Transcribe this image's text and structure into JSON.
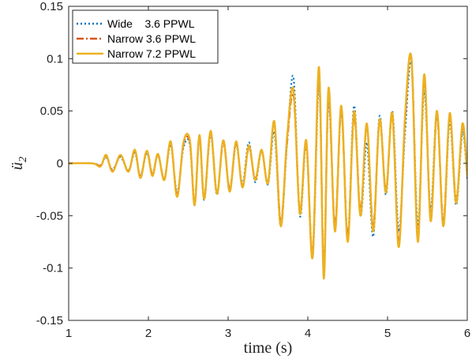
{
  "chart_data": {
    "type": "line",
    "title": "",
    "xlabel": "time (s)",
    "ylabel": "ü₂",
    "ylabel_main": "ü",
    "ylabel_sub": "2",
    "xlim": [
      1,
      6
    ],
    "ylim": [
      -0.15,
      0.15
    ],
    "xticks": [
      1,
      2,
      3,
      4,
      5,
      6
    ],
    "xtick_labels": [
      "1",
      "2",
      "3",
      "4",
      "5",
      "6"
    ],
    "yticks": [
      -0.15,
      -0.1,
      -0.05,
      0,
      0.05,
      0.1,
      0.15
    ],
    "ytick_labels": [
      "-0.15",
      "-0.1",
      "-0.05",
      "0",
      "0.05",
      "0.1",
      "0.15"
    ],
    "grid": false,
    "legend_position": "top-left",
    "series": [
      {
        "name": "Wide    3.6 PPWL",
        "color": "#0072BD",
        "style": "dotted",
        "x": [
          1.0,
          1.3,
          1.4,
          1.47,
          1.55,
          1.65,
          1.75,
          1.83,
          1.9,
          1.98,
          2.05,
          2.12,
          2.2,
          2.28,
          2.36,
          2.44,
          2.52,
          2.58,
          2.64,
          2.7,
          2.78,
          2.86,
          2.94,
          3.02,
          3.1,
          3.18,
          3.26,
          3.34,
          3.42,
          3.5,
          3.58,
          3.66,
          3.74,
          3.82,
          3.9,
          3.98,
          4.06,
          4.14,
          4.2,
          4.26,
          4.34,
          4.42,
          4.5,
          4.58,
          4.66,
          4.74,
          4.82,
          4.9,
          4.98,
          5.06,
          5.14,
          5.22,
          5.3,
          5.38,
          5.46,
          5.54,
          5.62,
          5.7,
          5.78,
          5.86,
          5.94,
          6.0
        ],
        "y": [
          0.0,
          0.0,
          -0.002,
          0.006,
          -0.006,
          0.006,
          -0.007,
          0.01,
          -0.012,
          0.01,
          -0.01,
          0.008,
          -0.015,
          0.018,
          -0.028,
          0.015,
          0.018,
          -0.04,
          0.025,
          -0.035,
          0.028,
          -0.03,
          0.022,
          -0.025,
          0.018,
          -0.02,
          0.02,
          -0.018,
          0.012,
          -0.02,
          0.03,
          -0.06,
          0.02,
          0.082,
          -0.05,
          0.018,
          -0.09,
          0.078,
          -0.1,
          0.06,
          -0.06,
          0.05,
          -0.07,
          0.055,
          -0.05,
          0.02,
          -0.07,
          0.045,
          -0.03,
          0.05,
          -0.065,
          0.03,
          0.095,
          -0.06,
          0.07,
          -0.045,
          0.05,
          -0.06,
          0.04,
          -0.04,
          0.03,
          -0.015
        ]
      },
      {
        "name": "Narrow 3.6 PPWL",
        "color": "#D95319",
        "style": "dashdot",
        "x": [
          1.0,
          1.3,
          1.4,
          1.47,
          1.55,
          1.65,
          1.75,
          1.83,
          1.9,
          1.98,
          2.05,
          2.12,
          2.2,
          2.28,
          2.36,
          2.44,
          2.52,
          2.58,
          2.64,
          2.7,
          2.78,
          2.86,
          2.94,
          3.02,
          3.1,
          3.18,
          3.26,
          3.34,
          3.42,
          3.5,
          3.58,
          3.66,
          3.74,
          3.82,
          3.9,
          3.98,
          4.06,
          4.14,
          4.2,
          4.26,
          4.34,
          4.42,
          4.5,
          4.58,
          4.66,
          4.74,
          4.82,
          4.9,
          4.98,
          5.06,
          5.14,
          5.22,
          5.3,
          5.38,
          5.46,
          5.54,
          5.62,
          5.7,
          5.78,
          5.86,
          5.94,
          6.0
        ],
        "y": [
          0.0,
          0.0,
          -0.002,
          0.007,
          -0.007,
          0.007,
          -0.007,
          0.012,
          -0.013,
          0.012,
          -0.01,
          0.008,
          -0.015,
          0.02,
          -0.03,
          0.018,
          0.02,
          -0.038,
          0.026,
          -0.033,
          0.03,
          -0.028,
          0.02,
          -0.025,
          0.02,
          -0.022,
          0.015,
          -0.015,
          0.012,
          -0.018,
          0.038,
          -0.055,
          0.02,
          0.065,
          -0.045,
          0.02,
          -0.085,
          0.085,
          -0.1,
          0.065,
          -0.06,
          0.05,
          -0.07,
          0.045,
          -0.045,
          0.035,
          -0.06,
          0.04,
          -0.025,
          0.045,
          -0.075,
          0.04,
          0.1,
          -0.07,
          0.08,
          -0.05,
          0.045,
          -0.055,
          0.045,
          -0.035,
          0.035,
          -0.012
        ]
      },
      {
        "name": "Narrow 7.2 PPWL",
        "color": "#EDB120",
        "style": "solid",
        "x": [
          1.0,
          1.3,
          1.4,
          1.47,
          1.55,
          1.65,
          1.75,
          1.83,
          1.9,
          1.98,
          2.05,
          2.12,
          2.2,
          2.28,
          2.36,
          2.44,
          2.52,
          2.58,
          2.64,
          2.7,
          2.78,
          2.86,
          2.94,
          3.02,
          3.1,
          3.18,
          3.26,
          3.34,
          3.42,
          3.5,
          3.58,
          3.66,
          3.74,
          3.82,
          3.9,
          3.98,
          4.06,
          4.14,
          4.2,
          4.26,
          4.34,
          4.42,
          4.5,
          4.58,
          4.66,
          4.74,
          4.82,
          4.9,
          4.98,
          5.06,
          5.14,
          5.22,
          5.3,
          5.38,
          5.46,
          5.54,
          5.62,
          5.7,
          5.78,
          5.86,
          5.94,
          6.0
        ],
        "y": [
          0.0,
          0.0,
          -0.003,
          0.008,
          -0.008,
          0.008,
          -0.008,
          0.013,
          -0.014,
          0.012,
          -0.012,
          0.009,
          -0.016,
          0.021,
          -0.032,
          0.02,
          0.022,
          -0.04,
          0.027,
          -0.034,
          0.031,
          -0.029,
          0.022,
          -0.027,
          0.021,
          -0.023,
          0.017,
          -0.016,
          0.013,
          -0.019,
          0.04,
          -0.06,
          0.025,
          0.07,
          -0.048,
          0.022,
          -0.09,
          0.092,
          -0.11,
          0.072,
          -0.065,
          0.055,
          -0.075,
          0.05,
          -0.05,
          0.038,
          -0.065,
          0.042,
          -0.028,
          0.048,
          -0.08,
          0.045,
          0.1,
          -0.075,
          0.085,
          -0.055,
          0.05,
          -0.06,
          0.048,
          -0.038,
          0.038,
          -0.013
        ]
      }
    ]
  }
}
